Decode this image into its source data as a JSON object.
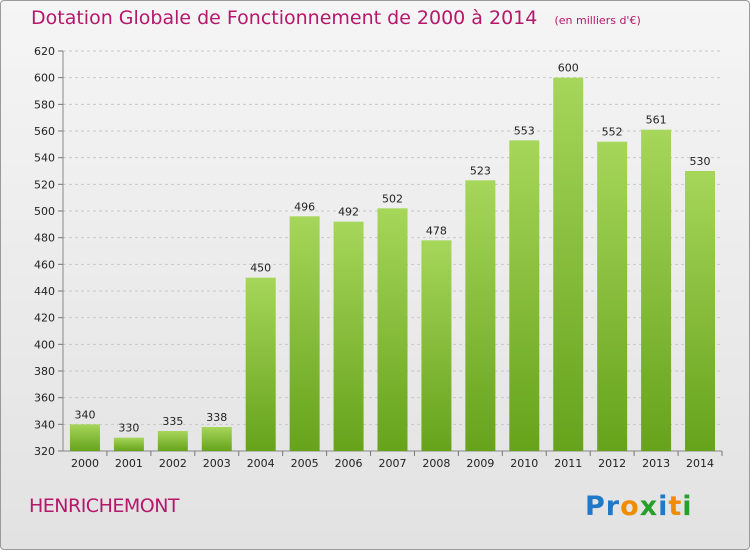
{
  "title": "Dotation Globale de Fonctionnement de 2000 à 2014",
  "unit_note": "(en milliers d'€)",
  "commune": "HENRICHEMONT",
  "logo": "Proxiti",
  "colors": {
    "title": "#b5176b",
    "bar_light": "#a6d65a",
    "bar_dark": "#66a31b",
    "logo_letters": [
      "#1f78c8",
      "#1f78c8",
      "#f08c00",
      "#27a02a",
      "#1f78c8",
      "#f08c00",
      "#27a02a"
    ]
  },
  "chart_data": {
    "type": "bar",
    "title": "Dotation Globale de Fonctionnement de 2000 à 2014",
    "subtitle": "(en milliers d'€)",
    "xlabel": "",
    "ylabel": "",
    "categories": [
      "2000",
      "2001",
      "2002",
      "2003",
      "2004",
      "2005",
      "2006",
      "2007",
      "2008",
      "2009",
      "2010",
      "2011",
      "2012",
      "2013",
      "2014"
    ],
    "values": [
      340,
      330,
      335,
      338,
      450,
      496,
      492,
      502,
      478,
      523,
      553,
      600,
      552,
      561,
      530
    ],
    "ylim": [
      320,
      620
    ],
    "yticks": [
      320,
      340,
      360,
      380,
      400,
      420,
      440,
      460,
      480,
      500,
      520,
      540,
      560,
      580,
      600,
      620
    ],
    "grid": true,
    "legend": "none"
  }
}
